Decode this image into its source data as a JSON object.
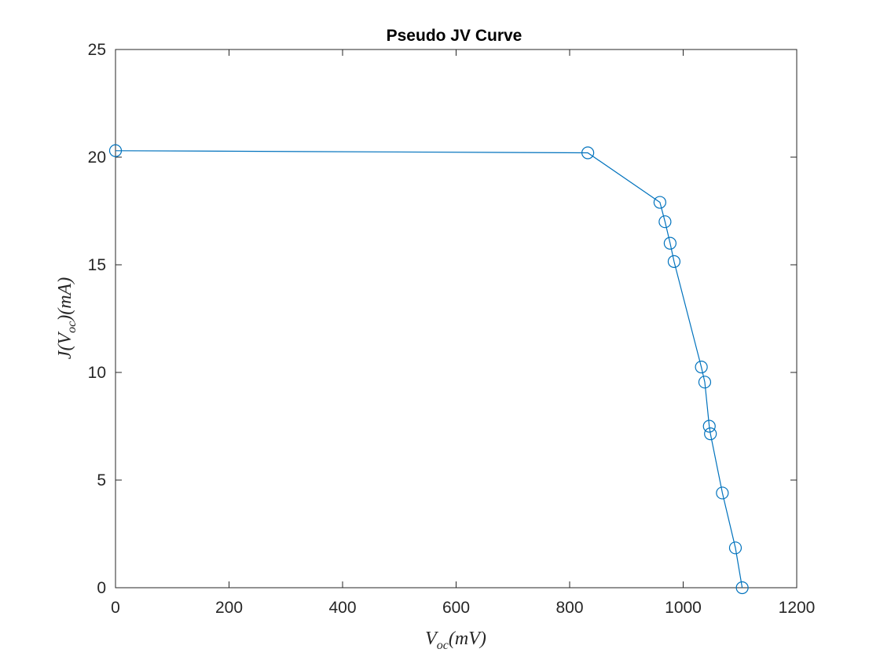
{
  "chart_data": {
    "type": "line",
    "title": "Pseudo JV Curve",
    "xlabel": "V_oc(mV)",
    "ylabel": "J(V_oc)(mA)",
    "xlim": [
      0,
      1200
    ],
    "ylim": [
      0,
      25
    ],
    "xticks": [
      "0",
      "200",
      "400",
      "600",
      "800",
      "1000",
      "1200"
    ],
    "yticks": [
      "0",
      "5",
      "10",
      "15",
      "20",
      "25"
    ],
    "grid": false,
    "legend": "none",
    "series": [
      {
        "color": "#0072BD",
        "marker": "circle",
        "x": [
          0,
          832,
          959,
          968,
          977,
          984,
          1032,
          1038,
          1046,
          1048,
          1069,
          1092,
          1104
        ],
        "y": [
          20.3,
          20.2,
          17.9,
          17.0,
          16.0,
          15.15,
          10.25,
          9.55,
          7.5,
          7.15,
          4.4,
          1.85,
          0.0
        ]
      }
    ]
  }
}
